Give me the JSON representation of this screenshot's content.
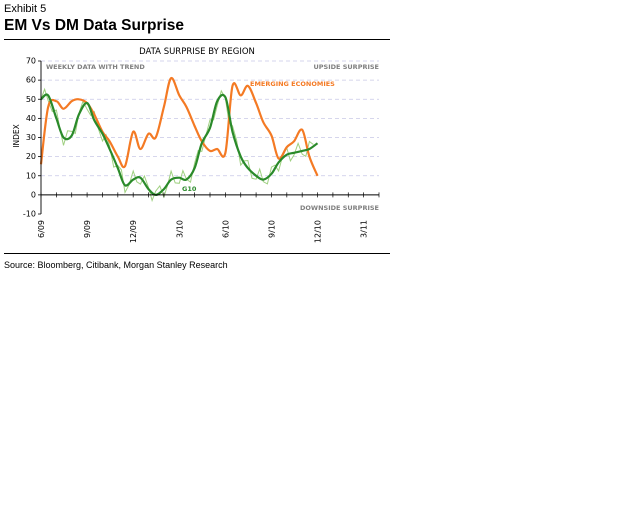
{
  "header": {
    "exhibit": "Exhibit 5",
    "title": "EM Vs DM Data Surprise"
  },
  "footer": {
    "source": "Source: Bloomberg, Citibank, Morgan Stanley Research"
  },
  "colors": {
    "em": "#f47a24",
    "g10_trend": "#2a8a2a",
    "g10_weekly": "#9fd080",
    "em_label": "#f47a24",
    "g10_label": "#2a8a2a",
    "annotation": "#808080",
    "grid": "#c8c8e6"
  },
  "chart_data": {
    "type": "line",
    "title": "DATA SURPRISE BY REGION",
    "xlabel": "",
    "ylabel": "INDEX",
    "xlim": [
      "2009-06",
      "2011-04"
    ],
    "ylim": [
      -10,
      70
    ],
    "yticks": [
      -10,
      0,
      10,
      20,
      30,
      40,
      50,
      60,
      70
    ],
    "xtick_labels": [
      "6/09",
      "9/09",
      "12/09",
      "3/10",
      "6/10",
      "9/10",
      "12/10",
      "3/11"
    ],
    "xtick_dates": [
      "2009-06",
      "2009-09",
      "2009-12",
      "2010-03",
      "2010-06",
      "2010-09",
      "2010-12",
      "2011-03"
    ],
    "grid": true,
    "annotations": {
      "top_left": "WEEKLY DATA WITH TREND",
      "top_right": "UPSIDE SURPRISE",
      "bottom_right": "DOWNSIDE SURPRISE"
    },
    "series": [
      {
        "name": "EMERGING ECONOMIES",
        "x": [
          "2009-06",
          "2009-06-15",
          "2009-07",
          "2009-07-15",
          "2009-08",
          "2009-08-15",
          "2009-09",
          "2009-09-15",
          "2009-10",
          "2009-10-15",
          "2009-11",
          "2009-11-15",
          "2009-12",
          "2009-12-15",
          "2010-01",
          "2010-01-15",
          "2010-02",
          "2010-02-15",
          "2010-03",
          "2010-03-15",
          "2010-04",
          "2010-04-15",
          "2010-05",
          "2010-05-15",
          "2010-06",
          "2010-06-15",
          "2010-07",
          "2010-07-15",
          "2010-08",
          "2010-08-15",
          "2010-09",
          "2010-09-15",
          "2010-10",
          "2010-10-15",
          "2010-11",
          "2010-11-15",
          "2010-12"
        ],
        "values": [
          16,
          46,
          49,
          45,
          49,
          50,
          48,
          42,
          33,
          28,
          20,
          15,
          33,
          24,
          32,
          30,
          46,
          61,
          52,
          46,
          36,
          28,
          23,
          24,
          22,
          57,
          52,
          57,
          48,
          38,
          31,
          19,
          25,
          28,
          34,
          20,
          10
        ]
      },
      {
        "name": "G10",
        "x": [
          "2009-06",
          "2009-06-15",
          "2009-07",
          "2009-07-15",
          "2009-08",
          "2009-08-15",
          "2009-09",
          "2009-09-15",
          "2009-10",
          "2009-10-15",
          "2009-11",
          "2009-11-15",
          "2009-12",
          "2009-12-15",
          "2010-01",
          "2010-01-15",
          "2010-02",
          "2010-02-15",
          "2010-03",
          "2010-03-15",
          "2010-04",
          "2010-04-15",
          "2010-05",
          "2010-05-15",
          "2010-06",
          "2010-06-15",
          "2010-07",
          "2010-07-15",
          "2010-08",
          "2010-08-15",
          "2010-09",
          "2010-09-15",
          "2010-10",
          "2010-10-15",
          "2010-11",
          "2010-11-15",
          "2010-12"
        ],
        "values": [
          50,
          52,
          40,
          30,
          31,
          42,
          48,
          39,
          32,
          24,
          14,
          5,
          8,
          9,
          3,
          0,
          3,
          8,
          9,
          8,
          14,
          27,
          35,
          49,
          51,
          33,
          20,
          14,
          10,
          8,
          11,
          17,
          21,
          22,
          23,
          24,
          27
        ]
      }
    ]
  }
}
